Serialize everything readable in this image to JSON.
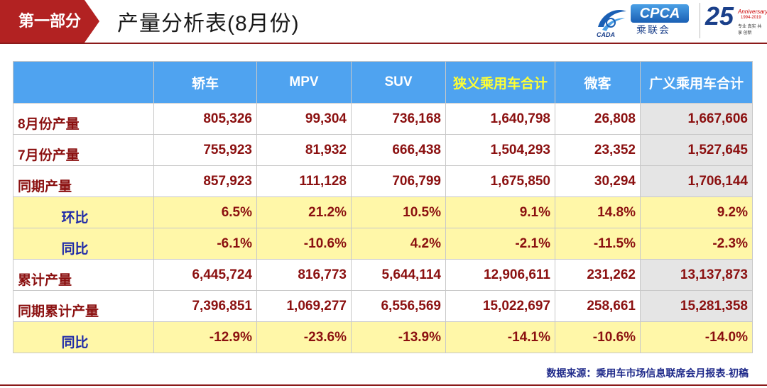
{
  "header": {
    "section_label": "第一部分",
    "title": "产量分析表(8月份)",
    "logo_cpca": {
      "box_text": "CPCA",
      "cn_text": "乘联会",
      "sub_text": "CADA"
    },
    "logo_anniversary": {
      "number": "25",
      "label": "Anniversary",
      "years": "1994-2019",
      "tagline": "专业 真实 共享 创新"
    }
  },
  "table": {
    "columns": [
      "",
      "轿车",
      "MPV",
      "SUV",
      "狭义乘用车合计",
      "微客",
      "广义乘用车合计"
    ],
    "rows": [
      {
        "label": "8月份产量",
        "values": [
          "805,326",
          "99,304",
          "736,168",
          "1,640,798",
          "26,808",
          "1,667,606"
        ],
        "type": "normal"
      },
      {
        "label": "7月份产量",
        "values": [
          "755,923",
          "81,932",
          "666,438",
          "1,504,293",
          "23,352",
          "1,527,645"
        ],
        "type": "normal"
      },
      {
        "label": "同期产量",
        "values": [
          "857,923",
          "111,128",
          "706,799",
          "1,675,850",
          "30,294",
          "1,706,144"
        ],
        "type": "normal"
      },
      {
        "label": "环比",
        "values": [
          "6.5%",
          "21.2%",
          "10.5%",
          "9.1%",
          "14.8%",
          "9.2%"
        ],
        "type": "ratio"
      },
      {
        "label": "同比",
        "values": [
          "-6.1%",
          "-10.6%",
          "4.2%",
          "-2.1%",
          "-11.5%",
          "-2.3%"
        ],
        "type": "ratio"
      },
      {
        "label": "累计产量",
        "values": [
          "6,445,724",
          "816,773",
          "5,644,114",
          "12,906,611",
          "231,262",
          "13,137,873"
        ],
        "type": "normal"
      },
      {
        "label": "同期累计产量",
        "values": [
          "7,396,851",
          "1,069,277",
          "6,556,569",
          "15,022,697",
          "258,661",
          "15,281,358"
        ],
        "type": "normal"
      },
      {
        "label": "同比",
        "values": [
          "-12.9%",
          "-23.6%",
          "-13.9%",
          "-14.1%",
          "-10.6%",
          "-14.0%"
        ],
        "type": "ratio"
      }
    ]
  },
  "source_note": "数据来源：乘用车市场信息联席会月报表-初稿",
  "colors": {
    "accent_red": "#b22222",
    "header_blue": "#4fa3f0",
    "highlight_yellow_text": "#ffff33",
    "ratio_row_bg": "#fff7a8",
    "value_text": "#8b1010",
    "ratio_label_text": "#1f2aa8",
    "grey_cell_bg": "#e5e5e5"
  }
}
